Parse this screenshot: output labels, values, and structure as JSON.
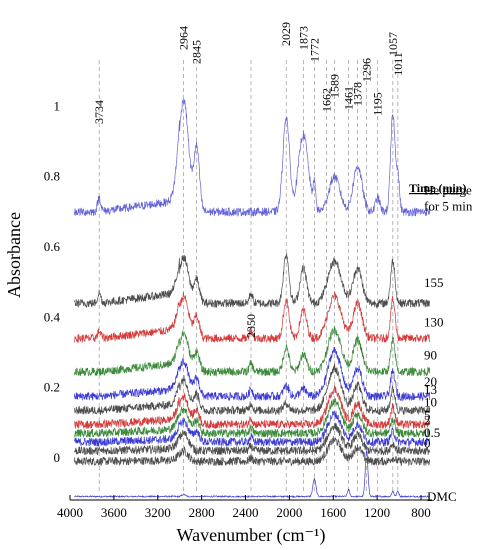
{
  "chart_data": {
    "type": "line",
    "xlabel": "Wavenumber (cm⁻¹)",
    "ylabel": "Absorbance",
    "xlim": [
      4000,
      700
    ],
    "ylim": [
      -0.12,
      1.28
    ],
    "x_reversed": true,
    "x_ticks": [
      4000,
      3600,
      3200,
      2800,
      2400,
      2000,
      1600,
      1200,
      800
    ],
    "y_ticks": [
      0,
      0.2,
      0.4,
      0.6,
      0.8,
      1
    ],
    "grid": false,
    "legend_title": "Time (min)",
    "peak_labels": [
      {
        "x": 3734,
        "label": "3734"
      },
      {
        "x": 2964,
        "label": "2964"
      },
      {
        "x": 2845,
        "label": "2845"
      },
      {
        "x": 2350,
        "label": "2350"
      },
      {
        "x": 2029,
        "label": "2029"
      },
      {
        "x": 1873,
        "label": "1873"
      },
      {
        "x": 1772,
        "label": "1772"
      },
      {
        "x": 1662,
        "label": "1662"
      },
      {
        "x": 1589,
        "label": "1589"
      },
      {
        "x": 1461,
        "label": "1461"
      },
      {
        "x": 1378,
        "label": "1378"
      },
      {
        "x": 1296,
        "label": "1296"
      },
      {
        "x": 1195,
        "label": "1195"
      },
      {
        "x": 1057,
        "label": "1057"
      },
      {
        "x": 1011,
        "label": "1011"
      }
    ],
    "series": [
      {
        "name": "DMC",
        "color": "#3b3bd4",
        "baseline": -0.11,
        "bands": [
          [
            2964,
            0.006,
            15
          ],
          [
            1772,
            0.05,
            14
          ],
          [
            1461,
            0.02,
            10
          ],
          [
            1296,
            0.13,
            12
          ],
          [
            1057,
            0.015,
            10
          ],
          [
            1011,
            0.015,
            10
          ]
        ]
      },
      {
        "name": "0",
        "color": "#4d4d4d",
        "baseline": -0.01,
        "bands": [
          [
            2964,
            0.03,
            40
          ],
          [
            2350,
            0.01,
            15
          ],
          [
            1589,
            0.06,
            60
          ],
          [
            1378,
            0.04,
            40
          ],
          [
            1057,
            0.01,
            20
          ]
        ]
      },
      {
        "name": "0.5",
        "color": "#4d4d4d",
        "baseline": 0.02,
        "bands": [
          [
            2964,
            0.05,
            45
          ],
          [
            2350,
            0.012,
            15
          ],
          [
            1589,
            0.07,
            60
          ],
          [
            1378,
            0.045,
            40
          ],
          [
            1057,
            0.02,
            20
          ]
        ]
      },
      {
        "name": "2",
        "color": "#3b3bd4",
        "baseline": 0.045,
        "bands": [
          [
            2964,
            0.06,
            45
          ],
          [
            2845,
            0.03,
            25
          ],
          [
            2350,
            0.014,
            15
          ],
          [
            1589,
            0.08,
            60
          ],
          [
            1378,
            0.05,
            40
          ],
          [
            1057,
            0.03,
            20
          ]
        ]
      },
      {
        "name": "5",
        "color": "#3a8a3a",
        "baseline": 0.07,
        "bands": [
          [
            2964,
            0.07,
            45
          ],
          [
            2845,
            0.035,
            25
          ],
          [
            2350,
            0.016,
            15
          ],
          [
            1589,
            0.09,
            60
          ],
          [
            1378,
            0.055,
            40
          ],
          [
            1057,
            0.04,
            20
          ]
        ]
      },
      {
        "name": "10",
        "color": "#d43a3a",
        "baseline": 0.095,
        "bands": [
          [
            2964,
            0.08,
            45
          ],
          [
            2845,
            0.04,
            25
          ],
          [
            2350,
            0.018,
            15
          ],
          [
            1589,
            0.1,
            60
          ],
          [
            1378,
            0.06,
            40
          ],
          [
            1057,
            0.05,
            20
          ]
        ]
      },
      {
        "name": "13",
        "color": "#4d4d4d",
        "baseline": 0.135,
        "bands": [
          [
            2964,
            0.09,
            45
          ],
          [
            2845,
            0.045,
            25
          ],
          [
            2350,
            0.02,
            15
          ],
          [
            2029,
            0.02,
            25
          ],
          [
            1589,
            0.12,
            60
          ],
          [
            1378,
            0.07,
            40
          ],
          [
            1057,
            0.06,
            20
          ]
        ]
      },
      {
        "name": "20",
        "color": "#3b3bd4",
        "baseline": 0.175,
        "bands": [
          [
            2964,
            0.1,
            45
          ],
          [
            2845,
            0.05,
            25
          ],
          [
            2350,
            0.022,
            15
          ],
          [
            2029,
            0.03,
            25
          ],
          [
            1873,
            0.02,
            30
          ],
          [
            1589,
            0.13,
            60
          ],
          [
            1378,
            0.08,
            40
          ],
          [
            1057,
            0.07,
            20
          ]
        ]
      },
      {
        "name": "90",
        "color": "#3a8a3a",
        "baseline": 0.245,
        "bands": [
          [
            2964,
            0.11,
            45
          ],
          [
            2845,
            0.055,
            25
          ],
          [
            2350,
            0.024,
            15
          ],
          [
            2029,
            0.07,
            25
          ],
          [
            1873,
            0.05,
            30
          ],
          [
            1589,
            0.12,
            60
          ],
          [
            1378,
            0.09,
            40
          ],
          [
            1057,
            0.09,
            20
          ]
        ]
      },
      {
        "name": "130",
        "color": "#d43a3a",
        "baseline": 0.34,
        "bands": [
          [
            3734,
            0.02,
            15
          ],
          [
            2964,
            0.12,
            45
          ],
          [
            2845,
            0.06,
            25
          ],
          [
            2350,
            0.026,
            15
          ],
          [
            2029,
            0.11,
            25
          ],
          [
            1873,
            0.08,
            30
          ],
          [
            1589,
            0.12,
            60
          ],
          [
            1378,
            0.1,
            40
          ],
          [
            1057,
            0.11,
            20
          ]
        ]
      },
      {
        "name": "155",
        "color": "#4d4d4d",
        "baseline": 0.44,
        "bands": [
          [
            3734,
            0.03,
            15
          ],
          [
            2964,
            0.13,
            45
          ],
          [
            2845,
            0.065,
            25
          ],
          [
            2350,
            0.028,
            15
          ],
          [
            2029,
            0.14,
            25
          ],
          [
            1873,
            0.1,
            30
          ],
          [
            1589,
            0.12,
            60
          ],
          [
            1378,
            0.1,
            40
          ],
          [
            1057,
            0.12,
            20
          ]
        ]
      },
      {
        "name": "He purge for 5 min",
        "color": "#6464d8",
        "baseline": 0.7,
        "bands": [
          [
            3734,
            0.04,
            15
          ],
          [
            2964,
            0.32,
            45
          ],
          [
            2845,
            0.18,
            25
          ],
          [
            2029,
            0.27,
            30
          ],
          [
            1873,
            0.22,
            45
          ],
          [
            1772,
            0.07,
            12
          ],
          [
            1589,
            0.1,
            50
          ],
          [
            1378,
            0.13,
            40
          ],
          [
            1195,
            0.04,
            20
          ],
          [
            1057,
            0.28,
            20
          ],
          [
            1011,
            0.1,
            15
          ]
        ]
      }
    ],
    "series_label_lines": {
      "He purge for 5 min": [
        "He purge",
        "for 5 min"
      ]
    }
  }
}
